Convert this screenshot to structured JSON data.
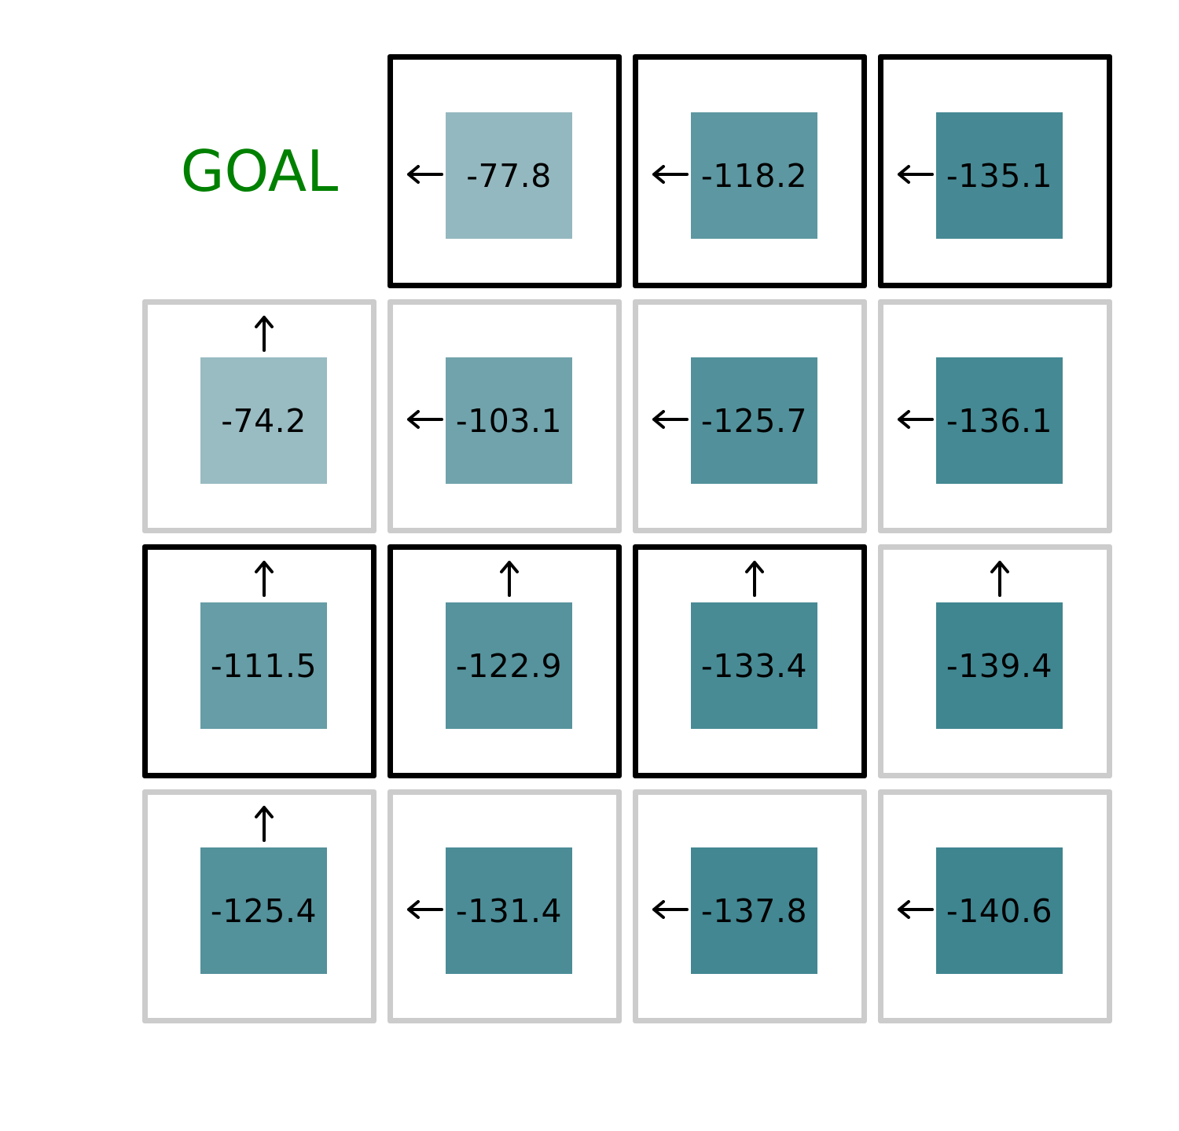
{
  "goal_label": "GOAL",
  "colors": {
    "bold_border": "#000000",
    "light_border": "#cccccc",
    "goal_text": "#008000",
    "value_scale_low": "#99bbc2",
    "value_scale_high": "#3e8590"
  },
  "value_range": [
    -140.6,
    -74.2
  ],
  "rows": [
    [
      {
        "goal": true
      },
      {
        "value": "-77.8",
        "arrow": "left",
        "bold": true
      },
      {
        "value": "-118.2",
        "arrow": "left",
        "bold": true
      },
      {
        "value": "-135.1",
        "arrow": "left",
        "bold": true
      }
    ],
    [
      {
        "value": "-74.2",
        "arrow": "up",
        "bold": false
      },
      {
        "value": "-103.1",
        "arrow": "left",
        "bold": false
      },
      {
        "value": "-125.7",
        "arrow": "left",
        "bold": false
      },
      {
        "value": "-136.1",
        "arrow": "left",
        "bold": false
      }
    ],
    [
      {
        "value": "-111.5",
        "arrow": "up",
        "bold": true
      },
      {
        "value": "-122.9",
        "arrow": "up",
        "bold": true
      },
      {
        "value": "-133.4",
        "arrow": "up",
        "bold": true
      },
      {
        "value": "-139.4",
        "arrow": "up",
        "bold": false
      }
    ],
    [
      {
        "value": "-125.4",
        "arrow": "up",
        "bold": false
      },
      {
        "value": "-131.4",
        "arrow": "left",
        "bold": false
      },
      {
        "value": "-137.8",
        "arrow": "left",
        "bold": false
      },
      {
        "value": "-140.6",
        "arrow": "left",
        "bold": false
      }
    ]
  ]
}
